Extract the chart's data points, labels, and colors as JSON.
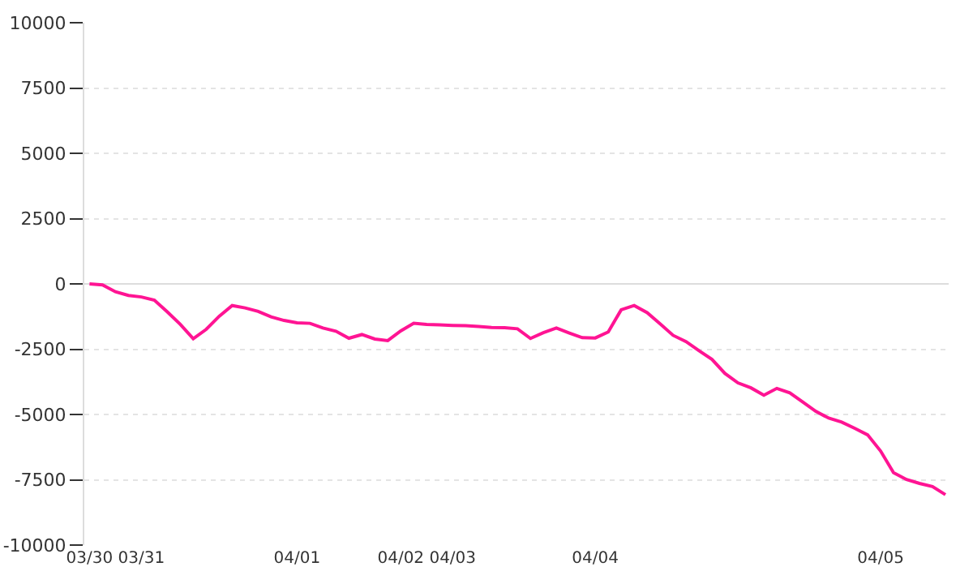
{
  "chart_data": {
    "type": "line",
    "color": "#ff1493",
    "categories": [
      "03/30",
      null,
      null,
      null,
      "03/31",
      null,
      null,
      null,
      null,
      null,
      null,
      null,
      null,
      null,
      null,
      null,
      "04/01",
      null,
      null,
      null,
      null,
      null,
      null,
      null,
      "04/02",
      null,
      null,
      null,
      "04/03",
      null,
      null,
      null,
      null,
      null,
      null,
      null,
      null,
      null,
      null,
      "04/04",
      null,
      null,
      null,
      null,
      null,
      null,
      null,
      null,
      null,
      null,
      null,
      null,
      null,
      null,
      null,
      null,
      null,
      null,
      null,
      null,
      null,
      "04/05",
      null,
      null,
      null,
      null,
      null
    ],
    "values": [
      0,
      -40,
      -300,
      -440,
      -500,
      -620,
      -1070,
      -1550,
      -2100,
      -1740,
      -1240,
      -830,
      -920,
      -1050,
      -1260,
      -1400,
      -1490,
      -1510,
      -1690,
      -1810,
      -2080,
      -1940,
      -2110,
      -2170,
      -1800,
      -1510,
      -1550,
      -1570,
      -1590,
      -1600,
      -1630,
      -1670,
      -1680,
      -1720,
      -2090,
      -1870,
      -1690,
      -1880,
      -2060,
      -2070,
      -1840,
      -990,
      -830,
      -1100,
      -1530,
      -1970,
      -2210,
      -2560,
      -2890,
      -3430,
      -3790,
      -3980,
      -4260,
      -4000,
      -4170,
      -4520,
      -4880,
      -5140,
      -5290,
      -5530,
      -5780,
      -6400,
      -7230,
      -7490,
      -7640,
      -7760,
      -8070
    ],
    "ylim": [
      -10000,
      10000
    ],
    "yticks": [
      -10000,
      -7500,
      -5000,
      -2500,
      0,
      2500,
      5000,
      7500,
      10000
    ],
    "grid": "y",
    "marker": "none",
    "line_style": "solid",
    "legend": false
  }
}
